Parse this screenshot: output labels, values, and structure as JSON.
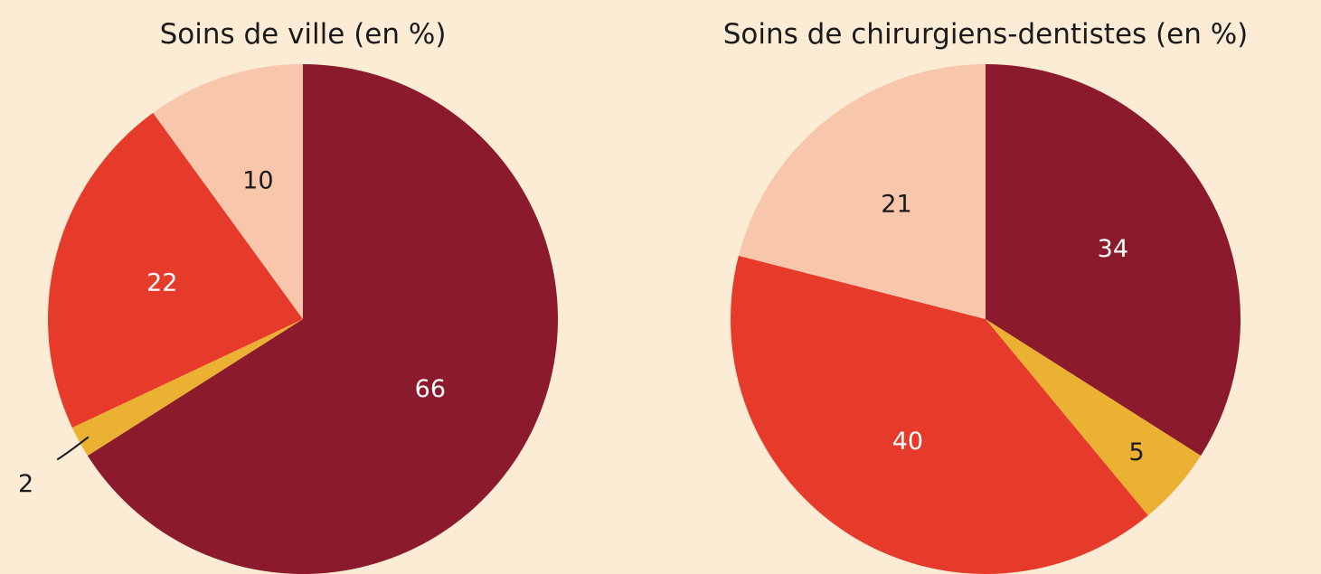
{
  "chart_data": [
    {
      "type": "pie",
      "title": "Soins de ville (en %)",
      "values": [
        66,
        2,
        22,
        10
      ],
      "colors": [
        "#8b1a2c",
        "#ebb133",
        "#e63a2a",
        "#f8c6ab"
      ],
      "label_colors": [
        "#ffffff",
        "#1a1a1a",
        "#ffffff",
        "#1a1a1a"
      ]
    },
    {
      "type": "pie",
      "title": "Soins de chirurgiens-dentistes (en %)",
      "values": [
        34,
        5,
        40,
        21
      ],
      "colors": [
        "#8b1a2c",
        "#ebb133",
        "#e63a2a",
        "#f8c6ab"
      ],
      "label_colors": [
        "#ffffff",
        "#1a1a1a",
        "#ffffff",
        "#1a1a1a"
      ]
    }
  ]
}
